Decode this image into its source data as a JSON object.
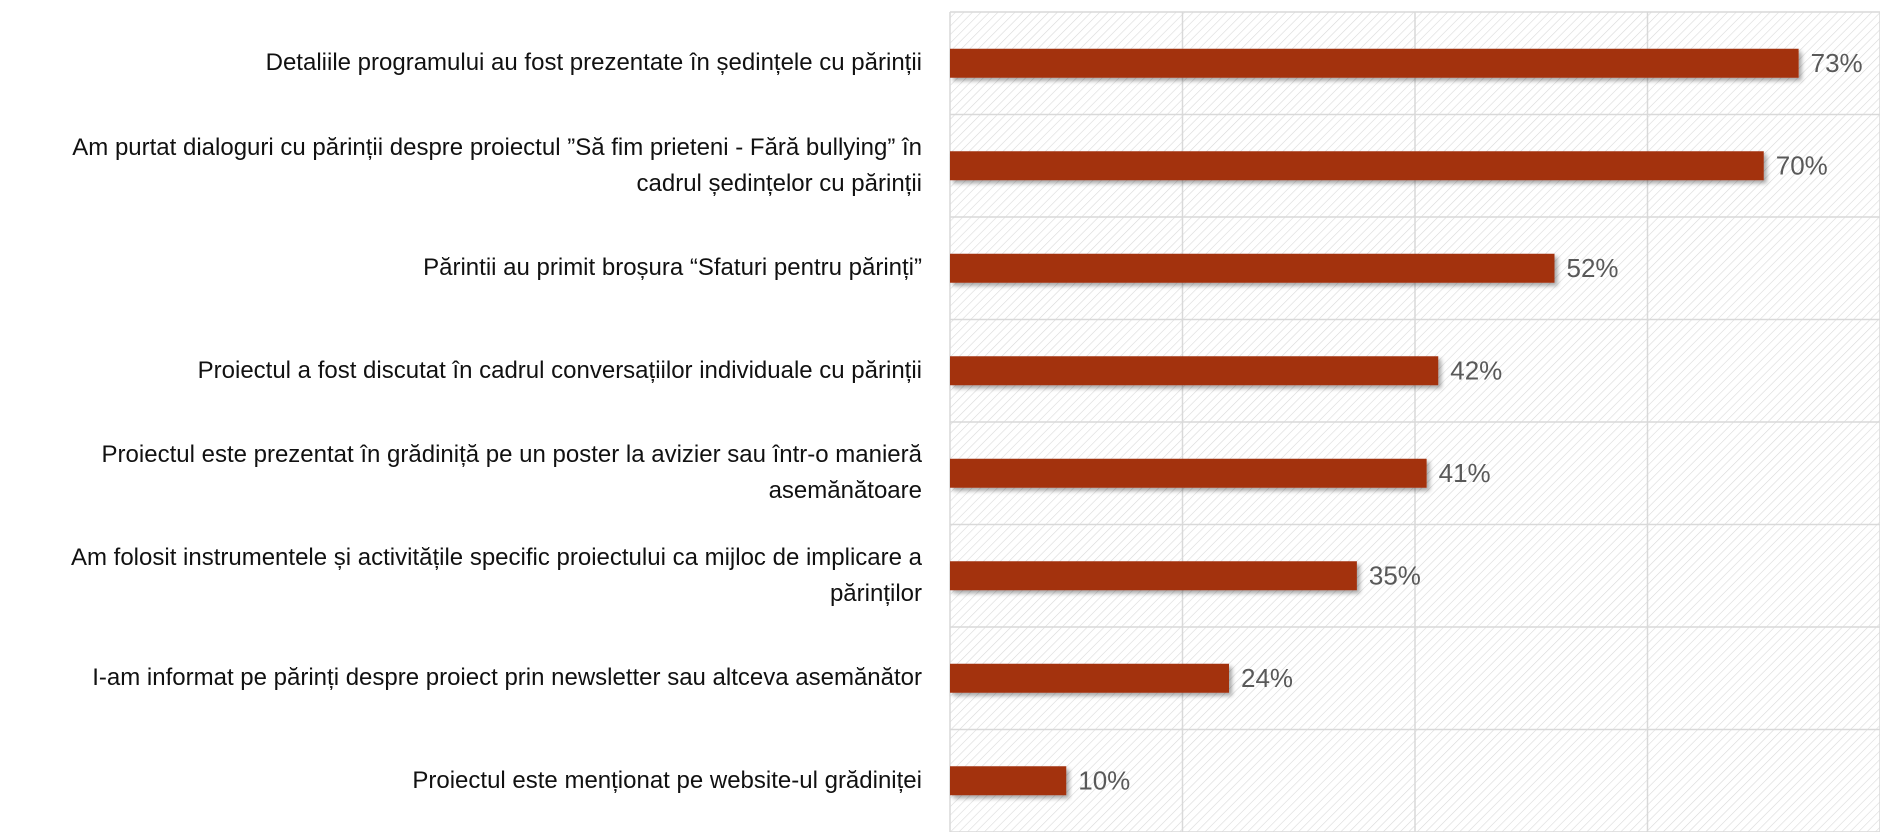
{
  "chart_data": {
    "type": "bar",
    "orientation": "horizontal",
    "categories": [
      "Detaliile programului au fost prezentate în ședințele cu părinții",
      "Am purtat dialoguri cu părinții despre proiectul ”Să fim prieteni - Fără bullying” în cadrul ședințelor cu părinții",
      "Părintii au primit broșura “Sfaturi pentru părinți”",
      "Proiectul a fost discutat în cadrul conversațiilor individuale cu părinții",
      "Proiectul este prezentat în grădiniță pe un poster la avizier sau într-o manieră asemănătoare",
      "Am folosit instrumentele și activitățile specific proiectului ca mijloc de implicare a părinților",
      "I-am informat pe părinți despre proiect prin newsletter sau altceva asemănător",
      "Proiectul este menționat pe website-ul grădiniței"
    ],
    "values": [
      73,
      70,
      52,
      42,
      41,
      35,
      24,
      10
    ],
    "value_labels": [
      "73%",
      "70%",
      "52%",
      "42%",
      "41%",
      "35%",
      "24%",
      "10%"
    ],
    "color": "#a33010",
    "xlim": [
      0,
      80
    ],
    "xticks": [
      0,
      20,
      40,
      60,
      80
    ],
    "grid": true
  }
}
